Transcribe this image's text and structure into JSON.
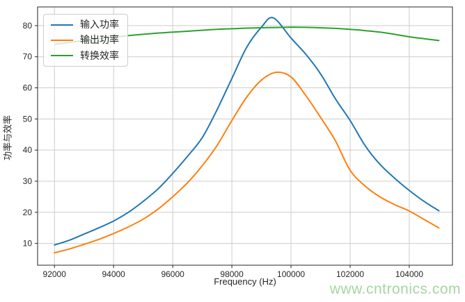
{
  "watermark": {
    "text": "www.cntronics.com",
    "color": "#a5d6a0"
  },
  "styles": {
    "background": "#ffffff",
    "grid_color": "#cccccc",
    "spine_color": "#262626",
    "tick_color": "#262626",
    "legend_border": "#cccccc"
  },
  "chart_data": {
    "type": "line",
    "title": "",
    "xlabel": "Frequency (Hz)",
    "ylabel": "功率与效率",
    "xlim": [
      91430,
      105460
    ],
    "ylim": [
      3,
      86
    ],
    "x_ticks": [
      92000,
      94000,
      96000,
      98000,
      100000,
      102000,
      104000
    ],
    "y_ticks": [
      10,
      20,
      30,
      40,
      50,
      60,
      70,
      80
    ],
    "grid": true,
    "legend_position": "upper-left",
    "series": [
      {
        "name": "输入功率",
        "key": "input-power",
        "color": "#1f77b4",
        "points": [
          [
            92000,
            9.5
          ],
          [
            92500,
            11.0
          ],
          [
            93000,
            13.0
          ],
          [
            93500,
            15.0
          ],
          [
            94000,
            17.2
          ],
          [
            94500,
            20.0
          ],
          [
            95000,
            23.5
          ],
          [
            95500,
            27.5
          ],
          [
            96000,
            32.5
          ],
          [
            96500,
            38.0
          ],
          [
            97000,
            44.0
          ],
          [
            97500,
            53.0
          ],
          [
            98000,
            63.0
          ],
          [
            98500,
            73.0
          ],
          [
            99000,
            79.5
          ],
          [
            99400,
            82.5
          ],
          [
            100000,
            76.0
          ],
          [
            100500,
            70.8
          ],
          [
            101000,
            64.5
          ],
          [
            101500,
            56.5
          ],
          [
            102000,
            49.5
          ],
          [
            102500,
            41.5
          ],
          [
            103000,
            35.5
          ],
          [
            103500,
            31.0
          ],
          [
            104000,
            27.0
          ],
          [
            104500,
            23.5
          ],
          [
            105000,
            20.5
          ]
        ]
      },
      {
        "name": "输出功率",
        "key": "output-power",
        "color": "#ff7f0e",
        "points": [
          [
            92000,
            7.0
          ],
          [
            92500,
            8.2
          ],
          [
            93000,
            9.7
          ],
          [
            93500,
            11.3
          ],
          [
            94000,
            13.2
          ],
          [
            94500,
            15.3
          ],
          [
            95000,
            17.8
          ],
          [
            95500,
            21.0
          ],
          [
            96000,
            25.0
          ],
          [
            96500,
            29.5
          ],
          [
            97000,
            35.0
          ],
          [
            97500,
            41.5
          ],
          [
            98000,
            49.5
          ],
          [
            98500,
            57.0
          ],
          [
            99000,
            62.5
          ],
          [
            99500,
            65.0
          ],
          [
            100000,
            63.5
          ],
          [
            100500,
            57.5
          ],
          [
            101000,
            50.5
          ],
          [
            101500,
            43.0
          ],
          [
            102000,
            33.5
          ],
          [
            102500,
            28.5
          ],
          [
            103000,
            25.0
          ],
          [
            103500,
            22.5
          ],
          [
            104000,
            20.4
          ],
          [
            104500,
            17.7
          ],
          [
            105000,
            15.0
          ]
        ]
      },
      {
        "name": "转换效率",
        "key": "conversion-efficiency",
        "color": "#2ca02c",
        "points": [
          [
            92000,
            74.0
          ],
          [
            92500,
            74.6
          ],
          [
            93000,
            75.2
          ],
          [
            93500,
            75.8
          ],
          [
            94000,
            76.3
          ],
          [
            94500,
            76.8
          ],
          [
            95000,
            77.2
          ],
          [
            95500,
            77.6
          ],
          [
            96000,
            77.9
          ],
          [
            96500,
            78.2
          ],
          [
            97000,
            78.5
          ],
          [
            97500,
            78.8
          ],
          [
            98000,
            79.0
          ],
          [
            98500,
            79.2
          ],
          [
            99000,
            79.3
          ],
          [
            99500,
            79.4
          ],
          [
            100000,
            79.5
          ],
          [
            100500,
            79.45
          ],
          [
            101000,
            79.3
          ],
          [
            101500,
            79.1
          ],
          [
            102000,
            78.8
          ],
          [
            102500,
            78.4
          ],
          [
            103000,
            77.9
          ],
          [
            103500,
            77.2
          ],
          [
            104000,
            76.4
          ],
          [
            104500,
            75.8
          ],
          [
            105000,
            75.2
          ]
        ]
      }
    ]
  }
}
